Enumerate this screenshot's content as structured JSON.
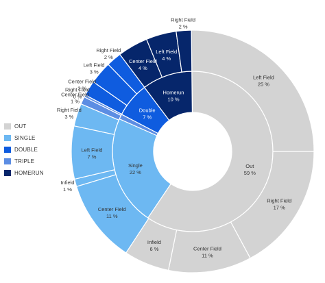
{
  "chart_data": {
    "type": "sunburst",
    "legend_position": "left",
    "legend": [
      {
        "label": "OUT",
        "color": "#d3d3d3"
      },
      {
        "label": "SINGLE",
        "color": "#6db8f2"
      },
      {
        "label": "DOUBLE",
        "color": "#0f5cdf"
      },
      {
        "label": "TRIPLE",
        "color": "#5c8de3"
      },
      {
        "label": "HOMERUN",
        "color": "#06266b"
      }
    ],
    "inner_ring": [
      {
        "name": "Out",
        "pct_label": "59 %",
        "value": 59,
        "color": "#d3d3d3",
        "text_color": "#333333"
      },
      {
        "name": "Single",
        "pct_label": "22 %",
        "value": 22,
        "color": "#6db8f2",
        "text_color": "#333333"
      },
      {
        "name": "",
        "pct_label": "",
        "value": 1,
        "color": "#5c8de3",
        "text_color": "#ffffff"
      },
      {
        "name": "Double",
        "pct_label": "7 %",
        "value": 7,
        "color": "#0f5cdf",
        "text_color": "#ffffff"
      },
      {
        "name": "Homerun",
        "pct_label": "10 %",
        "value": 10,
        "color": "#06266b",
        "text_color": "#ffffff"
      }
    ],
    "outer_ring": [
      {
        "parent": "Out",
        "name": "Left Field",
        "pct_label": "25 %",
        "value": 25
      },
      {
        "parent": "Out",
        "name": "Right Field",
        "pct_label": "17 %",
        "value": 17
      },
      {
        "parent": "Out",
        "name": "Center Field",
        "pct_label": "11 %",
        "value": 11
      },
      {
        "parent": "Out",
        "name": "Infield",
        "pct_label": "6 %",
        "value": 6
      },
      {
        "parent": "Single",
        "name": "Center Field",
        "pct_label": "11 %",
        "value": 11
      },
      {
        "parent": "Single",
        "name": "Infield",
        "pct_label": "1 %",
        "value": 1
      },
      {
        "parent": "Single",
        "name": "Left Field",
        "pct_label": "7 %",
        "value": 7
      },
      {
        "parent": "Single",
        "name": "Right Field",
        "pct_label": "3 %",
        "value": 3
      },
      {
        "parent": "Triple",
        "name": "Center Field",
        "pct_label": "1 %",
        "value": 1
      },
      {
        "parent": "Triple",
        "name": "Right Field",
        "pct_label": "0 %",
        "value": 0.3
      },
      {
        "parent": "Double",
        "name": "Center Field",
        "pct_label": "2 %",
        "value": 2
      },
      {
        "parent": "Double",
        "name": "Left Field",
        "pct_label": "3 %",
        "value": 3
      },
      {
        "parent": "Double",
        "name": "Right Field",
        "pct_label": "2 %",
        "value": 2
      },
      {
        "parent": "Homerun",
        "name": "Center Field",
        "pct_label": "4 %",
        "value": 4
      },
      {
        "parent": "Homerun",
        "name": "Left Field",
        "pct_label": "4 %",
        "value": 4
      },
      {
        "parent": "Homerun",
        "name": "Right Field",
        "pct_label": "2 %",
        "value": 2
      }
    ]
  }
}
